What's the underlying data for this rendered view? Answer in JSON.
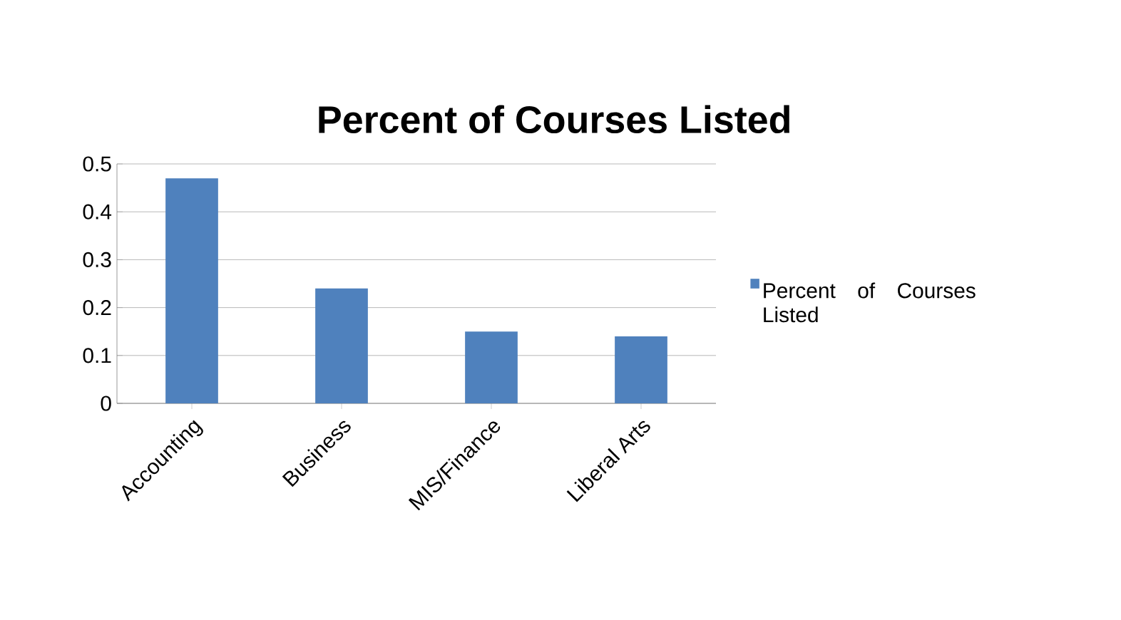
{
  "chart_data": {
    "type": "bar",
    "title": "Percent of Courses Listed",
    "categories": [
      "Accounting",
      "Business",
      "MIS/Finance",
      "Liberal Arts"
    ],
    "series": [
      {
        "name": "Percent of Courses Listed",
        "color": "#4f81bd",
        "values": [
          0.47,
          0.24,
          0.15,
          0.14
        ]
      }
    ],
    "ylim": [
      0,
      0.5
    ],
    "yticks": [
      0,
      0.1,
      0.2,
      0.3,
      0.4,
      0.5
    ],
    "grid": "y",
    "legend": "right"
  }
}
